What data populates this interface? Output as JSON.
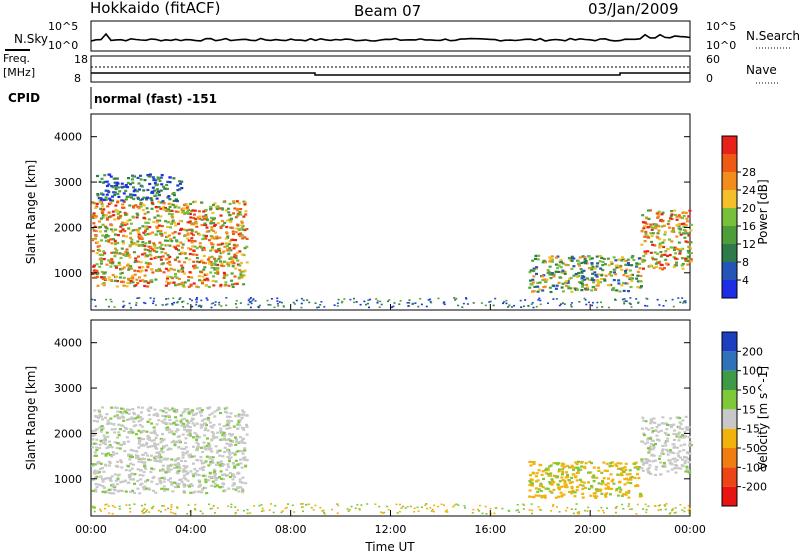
{
  "header": {
    "station": "Hokkaido (fitACF)",
    "beam": "Beam 07",
    "date": "03/Jan/2009"
  },
  "top_panels": {
    "nsky_label": "N.Sky",
    "nsearch_label": "N.Search",
    "freq_label_line1": "Freq.",
    "freq_label_line2": "[MHz]",
    "nave_label": "Nave",
    "cpid_label": "CPID",
    "cpid_text": "normal (fast) -151",
    "noise_ticks_left": [
      "10^5",
      "10^0"
    ],
    "noise_ticks_right": [
      "10^5",
      "10^0"
    ],
    "freq_ticks": [
      "18",
      "8"
    ],
    "nave_ticks": [
      "60",
      "0"
    ]
  },
  "chart_data": [
    {
      "type": "heatmap",
      "panel": "power",
      "ylabel": "Slant Range [km]",
      "ylim": [
        180,
        4500
      ],
      "yticks": [
        "1000",
        "2000",
        "3000",
        "4000"
      ],
      "xlim_hours": [
        0,
        24
      ],
      "colorbar": {
        "label": "Power [dB]",
        "ticks": [
          "4",
          "8",
          "12",
          "16",
          "20",
          "24",
          "28"
        ],
        "colors": [
          "#1e2ee6",
          "#2454b8",
          "#2f7a4a",
          "#4e9d3a",
          "#78bf3a",
          "#f4c02a",
          "#f28c1c",
          "#ee5a16",
          "#e8211a"
        ]
      },
      "regions": [
        {
          "t0": 0.0,
          "t1": 6.2,
          "r0": 700,
          "r1": 2600,
          "level": "high"
        },
        {
          "t0": 0.2,
          "t1": 3.6,
          "r0": 2600,
          "r1": 3200,
          "level": "low"
        },
        {
          "t0": 17.5,
          "t1": 22.0,
          "r0": 600,
          "r1": 1400,
          "level": "mid"
        },
        {
          "t0": 22.0,
          "t1": 24.0,
          "r0": 1100,
          "r1": 2400,
          "level": "high"
        }
      ]
    },
    {
      "type": "heatmap",
      "panel": "velocity",
      "ylabel": "Slant Range [km]",
      "ylim": [
        180,
        4500
      ],
      "yticks": [
        "1000",
        "2000",
        "3000",
        "4000"
      ],
      "xlim_hours": [
        0,
        24
      ],
      "xticks": [
        "00:00",
        "04:00",
        "08:00",
        "12:00",
        "16:00",
        "20:00",
        "00:00"
      ],
      "xlabel": "Time UT",
      "colorbar": {
        "label": "Velocity [m s^-1]",
        "ticks": [
          "200",
          "100",
          "50",
          "15",
          "-15",
          "-50",
          "-100",
          "-200"
        ],
        "colors": [
          "#1c3fc0",
          "#2f72b8",
          "#3f9a47",
          "#7ec83a",
          "#c8c8c8",
          "#f2b20c",
          "#f07d12",
          "#ec4616",
          "#e81414"
        ]
      },
      "regions": [
        {
          "t0": 0.0,
          "t1": 6.2,
          "r0": 700,
          "r1": 2600,
          "level": "gray"
        },
        {
          "t0": 17.5,
          "t1": 22.0,
          "r0": 600,
          "r1": 1400,
          "level": "orange"
        },
        {
          "t0": 22.0,
          "t1": 24.0,
          "r0": 1100,
          "r1": 2400,
          "level": "gray"
        }
      ]
    }
  ]
}
